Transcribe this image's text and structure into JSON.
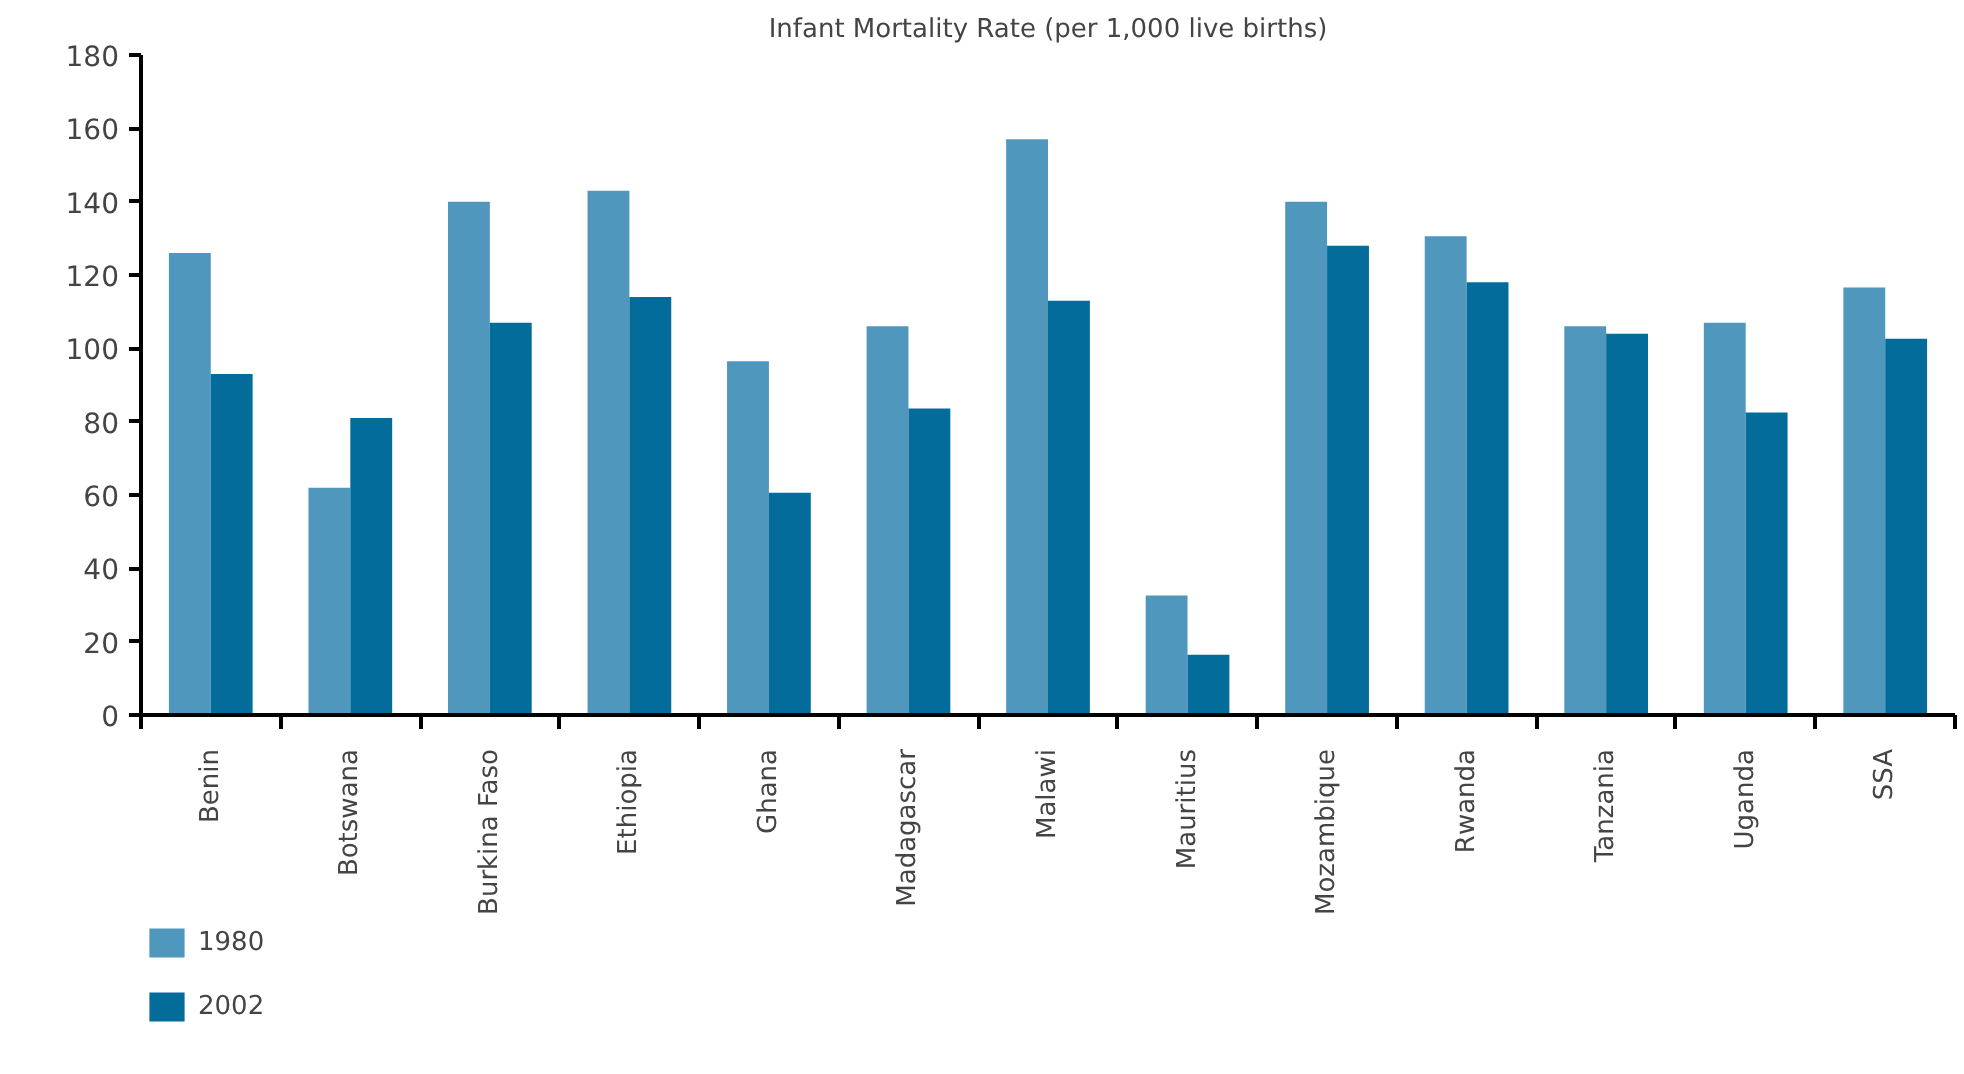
{
  "chart_data": {
    "type": "bar",
    "title": "Infant Mortality Rate (per 1,000 live births)",
    "categories": [
      "Benin",
      "Botswana",
      "Burkina Faso",
      "Ethiopia",
      "Ghana",
      "Madagascar",
      "Malawi",
      "Mauritius",
      "Mozambique",
      "Rwanda",
      "Tanzania",
      "Uganda",
      "SSA"
    ],
    "series": [
      {
        "name": "1980",
        "color": "#5097bd",
        "values": [
          126,
          62,
          140,
          143,
          96.5,
          106,
          157,
          32.6,
          140,
          130.6,
          106,
          107,
          116.6
        ]
      },
      {
        "name": "2002",
        "color": "#036c9a",
        "values": [
          93,
          81,
          107,
          114,
          60.6,
          83.6,
          113,
          16.4,
          128,
          118,
          104,
          82.5,
          102.6
        ]
      }
    ],
    "ylim": [
      0,
      180
    ],
    "yticks": [
      0,
      20,
      40,
      60,
      80,
      100,
      120,
      140,
      160,
      180
    ],
    "grid": false,
    "legend": "bottom left"
  }
}
